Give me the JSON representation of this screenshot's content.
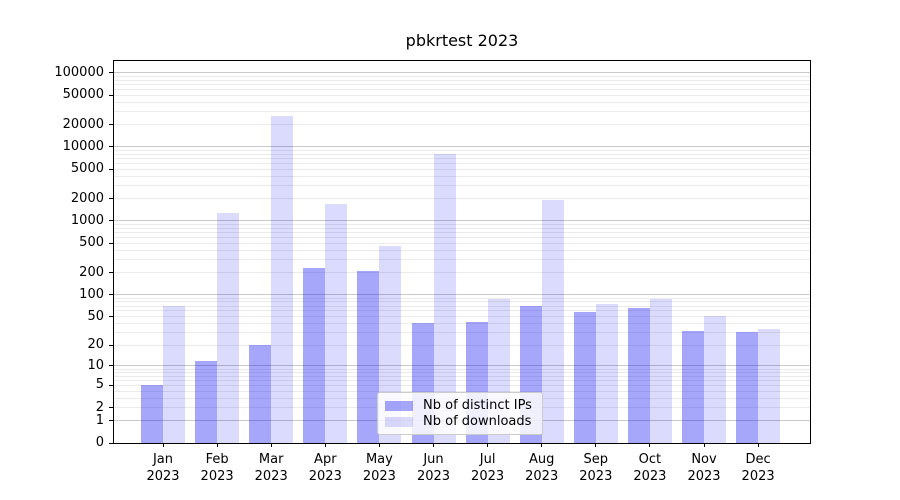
{
  "figure": {
    "title": "pbkrtest 2023"
  },
  "chart_data": {
    "type": "bar",
    "title": "pbkrtest 2023",
    "categories": [
      "Jan",
      "Feb",
      "Mar",
      "Apr",
      "May",
      "Jun",
      "Jul",
      "Aug",
      "Sep",
      "Oct",
      "Nov",
      "Dec"
    ],
    "year_label": "2023",
    "series": [
      {
        "name": "Nb of distinct IPs",
        "color": "rgba(0,0,240,0.35)",
        "values": [
          5,
          12,
          20,
          230,
          210,
          41,
          42,
          71,
          58,
          65,
          32,
          31
        ]
      },
      {
        "name": "Nb of downloads",
        "color": "rgba(0,0,240,0.14)",
        "values": [
          70,
          1280,
          26000,
          1700,
          460,
          8000,
          88,
          1900,
          75,
          88,
          51,
          34
        ]
      }
    ],
    "xlabel": "",
    "ylabel": "",
    "yscale": "log1p",
    "ylim": [
      0,
      150000
    ],
    "yticks": [
      0,
      1,
      2,
      5,
      10,
      20,
      50,
      100,
      200,
      500,
      1000,
      2000,
      5000,
      10000,
      20000,
      50000,
      100000
    ],
    "grid": {
      "enabled": true,
      "major_color": "#c9c9c9",
      "minor_color": "#ebebeb",
      "major_values": [
        1,
        10,
        100,
        1000,
        10000,
        100000
      ],
      "minor_decades": [
        1,
        10,
        100,
        1000,
        10000
      ]
    },
    "legend": {
      "position": "lower center"
    },
    "colors": {
      "axis": "#000000",
      "background": "#ffffff"
    }
  }
}
